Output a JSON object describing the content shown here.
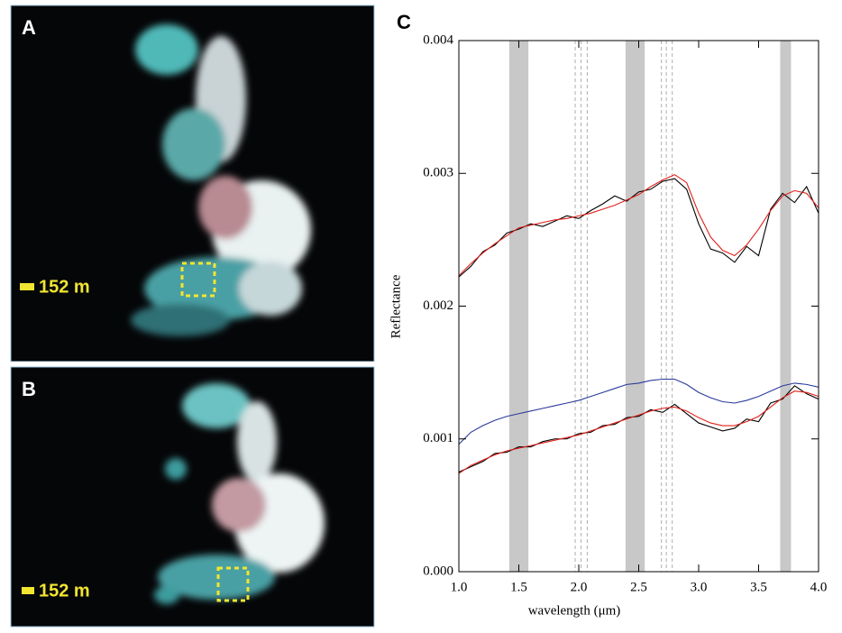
{
  "panels": [
    {
      "label": "A",
      "scale_label": "152 m"
    },
    {
      "label": "B",
      "scale_label": "152 m"
    }
  ],
  "chart_data": {
    "type": "line",
    "title": "C",
    "x_label": "wavelength (μm)",
    "y_label": "Reflectance",
    "x": [
      1.0,
      1.1,
      1.2,
      1.3,
      1.4,
      1.5,
      1.6,
      1.7,
      1.8,
      1.9,
      2.0,
      2.1,
      2.2,
      2.3,
      2.4,
      2.5,
      2.6,
      2.7,
      2.8,
      2.9,
      3.0,
      3.1,
      3.2,
      3.3,
      3.4,
      3.5,
      3.6,
      3.7,
      3.8,
      3.9,
      4.0
    ],
    "series": [
      {
        "color": "#000000",
        "values": [
          0.00222,
          0.0023,
          0.00241,
          0.00246,
          0.00255,
          0.00258,
          0.00262,
          0.0026,
          0.00264,
          0.00268,
          0.00266,
          0.00272,
          0.00277,
          0.00283,
          0.00279,
          0.00286,
          0.00288,
          0.00294,
          0.00296,
          0.00288,
          0.00262,
          0.00243,
          0.0024,
          0.00233,
          0.00245,
          0.00238,
          0.00273,
          0.00285,
          0.00278,
          0.0029,
          0.0027
        ]
      },
      {
        "color": "#e0201a",
        "values": [
          0.00223,
          0.00232,
          0.0024,
          0.00247,
          0.00253,
          0.00259,
          0.00261,
          0.00263,
          0.00265,
          0.00266,
          0.00268,
          0.0027,
          0.00273,
          0.00276,
          0.0028,
          0.00284,
          0.0029,
          0.00295,
          0.00299,
          0.00293,
          0.0027,
          0.00252,
          0.00242,
          0.00238,
          0.00246,
          0.00258,
          0.00272,
          0.00283,
          0.00287,
          0.00285,
          0.00274
        ]
      },
      {
        "color": "#2a3a9a",
        "values": [
          0.00096,
          0.00105,
          0.0011,
          0.00114,
          0.00117,
          0.00119,
          0.00121,
          0.00123,
          0.00125,
          0.00127,
          0.00129,
          0.00132,
          0.00135,
          0.00138,
          0.00141,
          0.00142,
          0.00144,
          0.00145,
          0.00145,
          0.00141,
          0.00135,
          0.00131,
          0.00128,
          0.00127,
          0.00129,
          0.00132,
          0.00136,
          0.0014,
          0.00142,
          0.00141,
          0.00139
        ]
      },
      {
        "color": "#000000",
        "values": [
          0.00075,
          0.00079,
          0.00083,
          0.00089,
          0.0009,
          0.00094,
          0.00094,
          0.00098,
          0.001,
          0.001,
          0.00104,
          0.00105,
          0.0011,
          0.00111,
          0.00116,
          0.00117,
          0.00122,
          0.0012,
          0.00126,
          0.00119,
          0.00112,
          0.00109,
          0.00106,
          0.00108,
          0.00115,
          0.00113,
          0.00127,
          0.0013,
          0.0014,
          0.00134,
          0.0013
        ]
      },
      {
        "color": "#e0201a",
        "values": [
          0.00074,
          0.0008,
          0.00084,
          0.00088,
          0.00091,
          0.00093,
          0.00095,
          0.00097,
          0.00099,
          0.00101,
          0.00103,
          0.00106,
          0.00109,
          0.00112,
          0.00115,
          0.00118,
          0.00121,
          0.00123,
          0.00124,
          0.00121,
          0.00116,
          0.00112,
          0.0011,
          0.0011,
          0.00113,
          0.00117,
          0.00124,
          0.00131,
          0.00136,
          0.00135,
          0.00132
        ]
      }
    ],
    "shaded_bands": [
      [
        1.42,
        1.58
      ],
      [
        2.39,
        2.55
      ],
      [
        3.68,
        3.77
      ]
    ],
    "band_color": "#c8c8c8",
    "dashed_lines": [
      1.97,
      2.02,
      2.07,
      2.69,
      2.73,
      2.78
    ],
    "xlim": [
      1.0,
      4.0
    ],
    "xticks": [
      {
        "value": 1.0,
        "label": "1.0"
      },
      {
        "value": 1.5,
        "label": "1.5"
      },
      {
        "value": 2.0,
        "label": "2.0"
      },
      {
        "value": 2.5,
        "label": "2.5"
      },
      {
        "value": 3.0,
        "label": "3.0"
      },
      {
        "value": 3.5,
        "label": "3.5"
      },
      {
        "value": 4.0,
        "label": "4.0"
      }
    ],
    "ylim": [
      0,
      0.004
    ],
    "yticks": [
      {
        "value": 0,
        "label": "0.000"
      },
      {
        "value": 0.001,
        "label": "0.001"
      },
      {
        "value": 0.002,
        "label": "0.002"
      },
      {
        "value": 0.003,
        "label": "0.003"
      },
      {
        "value": 0.004,
        "label": "0.004"
      }
    ],
    "grid": false
  }
}
